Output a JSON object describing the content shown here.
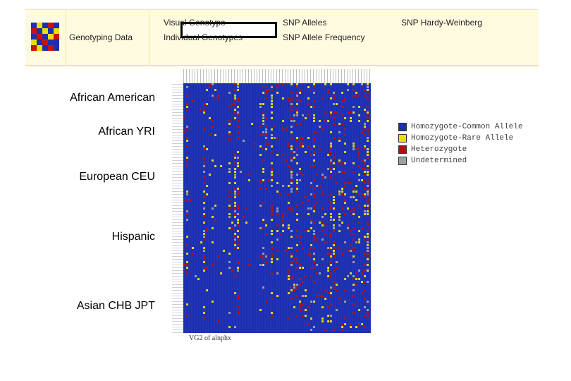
{
  "nav": {
    "logo_colors": [
      [
        "#1c2fb0",
        "#e8e000",
        "#1c2fb0",
        "#cc1010",
        "#1c2fb0"
      ],
      [
        "#cc1010",
        "#1c2fb0",
        "#e8e000",
        "#1c2fb0",
        "#e8e000"
      ],
      [
        "#1c2fb0",
        "#cc1010",
        "#1c2fb0",
        "#e8e000",
        "#cc1010"
      ],
      [
        "#e8e000",
        "#1c2fb0",
        "#cc1010",
        "#1c2fb0",
        "#1c2fb0"
      ],
      [
        "#cc1010",
        "#e8e000",
        "#1c2fb0",
        "#cc1010",
        "#1c2fb0"
      ]
    ],
    "section_label": "Genotyping Data",
    "links": {
      "visual_genotype": "Visual Genotype",
      "individual_genotypes": "Individual Genotypes",
      "snp_alleles": "SNP Alleles",
      "snp_allele_frequency": "SNP Allele Frequency",
      "snp_hardy_weinberg": "SNP Hardy-Weinberg"
    }
  },
  "populations": [
    "African American",
    "African YRI",
    "European CEU",
    "Hispanic",
    "Asian CHB JPT"
  ],
  "legend": [
    {
      "label": "Homozygote-Common Allele",
      "color": "#1c2fb0"
    },
    {
      "label": "Homozygote-Rare Allele",
      "color": "#e8e000"
    },
    {
      "label": "Heterozygote",
      "color": "#b01010"
    },
    {
      "label": "Undetermined",
      "color": "#a0a0a0"
    }
  ],
  "colors": {
    "common": "#1c2fb0",
    "rare": "#e8e000",
    "het": "#b01010",
    "undetermined": "#a0a0a0"
  },
  "caption": "VG2 of alnphx"
}
